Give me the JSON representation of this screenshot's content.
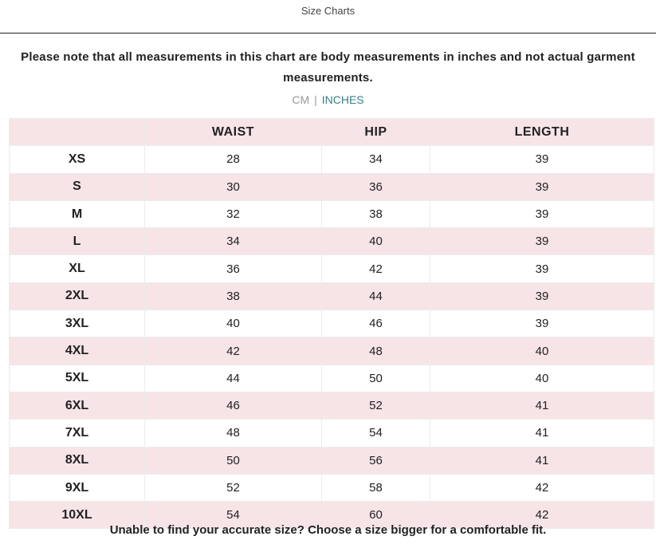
{
  "header": {
    "title": "Size Charts"
  },
  "note": "Please note that all measurements in this chart are body measurements in inches and not actual garment measurements.",
  "units": {
    "cm": "CM",
    "separator": "|",
    "inches": "INCHES",
    "selected": "INCHES",
    "active_color": "#3a7f86"
  },
  "table": {
    "columns": [
      "",
      "WAIST",
      "HIP",
      "LENGTH"
    ],
    "rows": [
      [
        "XS",
        "28",
        "34",
        "39"
      ],
      [
        "S",
        "30",
        "36",
        "39"
      ],
      [
        "M",
        "32",
        "38",
        "39"
      ],
      [
        "L",
        "34",
        "40",
        "39"
      ],
      [
        "XL",
        "36",
        "42",
        "39"
      ],
      [
        "2XL",
        "38",
        "44",
        "39"
      ],
      [
        "3XL",
        "40",
        "46",
        "39"
      ],
      [
        "4XL",
        "42",
        "48",
        "40"
      ],
      [
        "5XL",
        "44",
        "50",
        "40"
      ],
      [
        "6XL",
        "46",
        "52",
        "41"
      ],
      [
        "7XL",
        "48",
        "54",
        "41"
      ],
      [
        "8XL",
        "50",
        "56",
        "41"
      ],
      [
        "9XL",
        "52",
        "58",
        "42"
      ],
      [
        "10XL",
        "54",
        "60",
        "42"
      ]
    ],
    "stripe_color": "#f7e4e6"
  },
  "footer": "Unable to find your accurate size? Choose a size bigger for a comfortable fit."
}
